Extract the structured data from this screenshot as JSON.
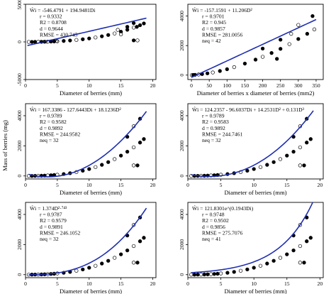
{
  "figure": {
    "shared_ylabel": "Mass of berries (mg)"
  },
  "chart_data": [
    {
      "type": "scatter",
      "xlabel": "Diameter of berries (mm)",
      "ylabel": "",
      "xlim": [
        0,
        20.5
      ],
      "ylim": [
        -5000,
        5000
      ],
      "xticks": [
        0,
        5,
        10,
        15,
        20
      ],
      "yticks": [
        -5000,
        0,
        5000
      ],
      "annotation": [
        "Ŵi = -546.4791 + 194.9481Di",
        "r = 0.9332",
        "R2 = 0.8708",
        "d = 0.9644",
        "RMSE = 430.745",
        "neq = 99"
      ],
      "fit": {
        "kind": "linear",
        "a": -546.4791,
        "b": 194.9481,
        "x_range": [
          0.3,
          19
        ]
      },
      "series": [
        {
          "values": [
            [
              0.5,
              2
            ],
            [
              1,
              3
            ],
            [
              1.5,
              5
            ],
            [
              2,
              9
            ],
            [
              2.5,
              14
            ],
            [
              3,
              22
            ],
            [
              3.5,
              33
            ],
            [
              4,
              47
            ],
            [
              4.5,
              62
            ],
            [
              5,
              80
            ],
            [
              6,
              125
            ],
            [
              7,
              185
            ],
            [
              8,
              260
            ],
            [
              9,
              350
            ],
            [
              10,
              460
            ],
            [
              11,
              590
            ],
            [
              12,
              740
            ],
            [
              13,
              920
            ],
            [
              14,
              1120
            ],
            [
              15,
              1350
            ],
            [
              16,
              1610
            ],
            [
              17,
              1900
            ],
            [
              18,
              2220
            ],
            [
              18.6,
              2450
            ],
            [
              15,
              1000
            ],
            [
              16,
              2000
            ],
            [
              17,
              2500
            ],
            [
              14.5,
              1600
            ],
            [
              17.5,
              2000
            ],
            [
              17,
              200
            ],
            [
              17.6,
              200
            ]
          ]
        }
      ]
    },
    {
      "type": "scatter",
      "xlabel": "Diameter of berries x diameter of berries (mm2)",
      "ylabel": "",
      "xlim": [
        -10,
        370
      ],
      "ylim": [
        -300,
        4800
      ],
      "xticks": [
        0,
        50,
        100,
        150,
        200,
        250,
        300,
        350
      ],
      "yticks": [
        0,
        2000,
        4000
      ],
      "annotation": [
        "Ŵi = -157.1591 + 11.206D²",
        "r = 0.9701",
        "R2 = 0.945",
        "d = 0.9857",
        "RMSE = 281.0056",
        "neq = 42"
      ],
      "fit": {
        "kind": "linear",
        "a": -157.1591,
        "b": 11.206,
        "x_range": [
          0,
          350
        ]
      },
      "series": [
        {
          "values": [
            [
              1,
              2
            ],
            [
              5,
              9
            ],
            [
              10,
              18
            ],
            [
              20,
              40
            ],
            [
              30,
              70
            ],
            [
              45,
              120
            ],
            [
              60,
              180
            ],
            [
              80,
              280
            ],
            [
              100,
              400
            ],
            [
              120,
              540
            ],
            [
              150,
              780
            ],
            [
              180,
              1050
            ],
            [
              200,
              1240
            ],
            [
              225,
              1500
            ],
            [
              250,
              1780
            ],
            [
              275,
              2100
            ],
            [
              300,
              2450
            ],
            [
              325,
              2800
            ],
            [
              345,
              3100
            ],
            [
              200,
              1800
            ],
            [
              250,
              2400
            ],
            [
              300,
              3400
            ],
            [
              340,
              4000
            ],
            [
              240,
              1100
            ],
            [
              280,
              2800
            ]
          ]
        }
      ]
    },
    {
      "type": "scatter",
      "xlabel": "Diameter of berries (mm)",
      "ylabel": "",
      "xlim": [
        0,
        20.5
      ],
      "ylim": [
        -200,
        4800
      ],
      "xticks": [
        0,
        5,
        10,
        15,
        20
      ],
      "yticks": [
        0,
        2000,
        4000
      ],
      "annotation": [
        "Ŵi = 167.3386 - 127.6443Di + 18.1236D²",
        "r = 0.9789",
        "R2 = 0.9582",
        "d = 0.9892",
        "RMSE = 244.9582",
        "neq = 32"
      ],
      "fit": {
        "kind": "poly",
        "coef": [
          167.3386,
          -127.6443,
          18.1236
        ],
        "x_range": [
          0.5,
          19
        ]
      },
      "series": [
        {
          "values": [
            [
              0.5,
              2
            ],
            [
              1,
              3
            ],
            [
              1.5,
              5
            ],
            [
              2,
              9
            ],
            [
              2.5,
              14
            ],
            [
              3,
              22
            ],
            [
              3.5,
              33
            ],
            [
              4,
              47
            ],
            [
              4.5,
              62
            ],
            [
              5,
              80
            ],
            [
              6,
              125
            ],
            [
              7,
              185
            ],
            [
              8,
              260
            ],
            [
              9,
              350
            ],
            [
              10,
              460
            ],
            [
              11,
              590
            ],
            [
              12,
              740
            ],
            [
              13,
              920
            ],
            [
              14,
              1120
            ],
            [
              15,
              1350
            ],
            [
              16,
              1610
            ],
            [
              17,
              1900
            ],
            [
              18,
              2220
            ],
            [
              18.6,
              2450
            ],
            [
              17,
              3300
            ],
            [
              18,
              3800
            ],
            [
              16,
              2600
            ],
            [
              17,
              700
            ],
            [
              17.6,
              700
            ]
          ]
        }
      ]
    },
    {
      "type": "scatter",
      "xlabel": "Diameter of berries (mm)",
      "ylabel": "",
      "xlim": [
        0,
        20.5
      ],
      "ylim": [
        -200,
        4800
      ],
      "xticks": [
        0,
        5,
        10,
        15,
        20
      ],
      "yticks": [
        0,
        2000,
        4000
      ],
      "annotation": [
        "Ŵi = 124.2357 - 96.6037Di + 14.2531D² + 0.131D³",
        "r = 0.9789",
        "R2 = 0.9583",
        "d = 0.9892",
        "RMSE = 244.7461",
        "neq = 32"
      ],
      "fit": {
        "kind": "poly",
        "coef": [
          124.2357,
          -96.6037,
          14.2531,
          0.131
        ],
        "x_range": [
          0.5,
          19
        ]
      },
      "series": [
        {
          "values": [
            [
              0.5,
              2
            ],
            [
              1,
              3
            ],
            [
              1.5,
              5
            ],
            [
              2,
              9
            ],
            [
              2.5,
              14
            ],
            [
              3,
              22
            ],
            [
              3.5,
              33
            ],
            [
              4,
              47
            ],
            [
              4.5,
              62
            ],
            [
              5,
              80
            ],
            [
              6,
              125
            ],
            [
              7,
              185
            ],
            [
              8,
              260
            ],
            [
              9,
              350
            ],
            [
              10,
              460
            ],
            [
              11,
              590
            ],
            [
              12,
              740
            ],
            [
              13,
              920
            ],
            [
              14,
              1120
            ],
            [
              15,
              1350
            ],
            [
              16,
              1610
            ],
            [
              17,
              1900
            ],
            [
              18,
              2220
            ],
            [
              18.6,
              2450
            ],
            [
              17,
              3300
            ],
            [
              18,
              3800
            ],
            [
              16,
              2600
            ],
            [
              17,
              700
            ],
            [
              17.6,
              700
            ]
          ]
        }
      ]
    },
    {
      "type": "scatter",
      "xlabel": "Diameter of berries (mm)",
      "ylabel": "",
      "xlim": [
        0,
        20.5
      ],
      "ylim": [
        -200,
        4800
      ],
      "xticks": [
        0,
        5,
        10,
        15,
        20
      ],
      "yticks": [
        0,
        2000,
        4000
      ],
      "annotation": [
        "Ŵi = 1.374D²·⁷⁴³",
        "r = 0.9787",
        "R2 = 0.9579",
        "d = 0.9891",
        "RMSE = 246.1052",
        "neq = 32"
      ],
      "fit": {
        "kind": "power",
        "a": 1.374,
        "b": 2.743,
        "x_range": [
          0.5,
          19
        ]
      },
      "series": [
        {
          "values": [
            [
              0.5,
              2
            ],
            [
              1,
              3
            ],
            [
              1.5,
              5
            ],
            [
              2,
              9
            ],
            [
              2.5,
              14
            ],
            [
              3,
              22
            ],
            [
              3.5,
              33
            ],
            [
              4,
              47
            ],
            [
              4.5,
              62
            ],
            [
              5,
              80
            ],
            [
              6,
              125
            ],
            [
              7,
              185
            ],
            [
              8,
              260
            ],
            [
              9,
              350
            ],
            [
              10,
              460
            ],
            [
              11,
              590
            ],
            [
              12,
              740
            ],
            [
              13,
              920
            ],
            [
              14,
              1120
            ],
            [
              15,
              1350
            ],
            [
              16,
              1610
            ],
            [
              17,
              1900
            ],
            [
              18,
              2220
            ],
            [
              18.6,
              2450
            ],
            [
              17,
              3300
            ],
            [
              18,
              3800
            ],
            [
              16,
              2600
            ],
            [
              17,
              800
            ],
            [
              17.6,
              800
            ]
          ]
        }
      ]
    },
    {
      "type": "scatter",
      "xlabel": "Diameter of berries (mm)",
      "ylabel": "",
      "xlim": [
        0,
        20.5
      ],
      "ylim": [
        -200,
        4800
      ],
      "xticks": [
        0,
        5,
        10,
        15,
        20
      ],
      "yticks": [
        0,
        2000,
        4000
      ],
      "annotation": [
        "Ŵi = 121.8301e^(0.1943Di)",
        "r = 0.9748",
        "R2 = 0.9502",
        "d = 0.9856",
        "RMSE = 275.7076",
        "neq = 41"
      ],
      "fit": {
        "kind": "exp",
        "a": 121.8301,
        "b": 0.1943,
        "x_range": [
          0.5,
          19
        ]
      },
      "series": [
        {
          "values": [
            [
              0.5,
              2
            ],
            [
              1,
              3
            ],
            [
              1.5,
              5
            ],
            [
              2,
              9
            ],
            [
              2.5,
              14
            ],
            [
              3,
              22
            ],
            [
              3.5,
              33
            ],
            [
              4,
              47
            ],
            [
              4.5,
              62
            ],
            [
              5,
              80
            ],
            [
              6,
              125
            ],
            [
              7,
              185
            ],
            [
              8,
              260
            ],
            [
              9,
              350
            ],
            [
              10,
              460
            ],
            [
              11,
              590
            ],
            [
              12,
              740
            ],
            [
              13,
              920
            ],
            [
              14,
              1120
            ],
            [
              15,
              1350
            ],
            [
              16,
              1610
            ],
            [
              17,
              1900
            ],
            [
              18,
              2220
            ],
            [
              18.6,
              2450
            ],
            [
              17,
              3300
            ],
            [
              18,
              3800
            ],
            [
              16,
              2600
            ],
            [
              17,
              800
            ],
            [
              17.6,
              800
            ]
          ]
        }
      ]
    }
  ]
}
